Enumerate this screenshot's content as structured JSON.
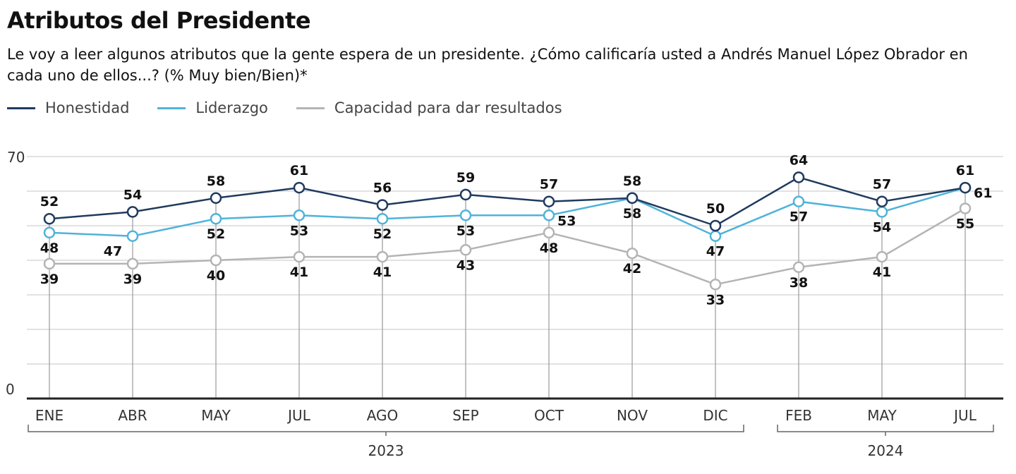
{
  "title": "Atributos del Presidente",
  "subtitle": "Le voy a leer algunos atributos que la gente espera de un presidente. ¿Cómo calificaría usted a Andrés Manuel López Obrador en cada uno de ellos...? (% Muy bien/Bien)*",
  "chart_data": {
    "type": "line",
    "categories": [
      "ENE",
      "ABR",
      "MAY",
      "JUL",
      "AGO",
      "SEP",
      "OCT",
      "NOV",
      "DIC",
      "FEB",
      "MAY",
      "JUL"
    ],
    "year_groups": [
      {
        "label": "2023",
        "from": 0,
        "to": 8
      },
      {
        "label": "2024",
        "from": 9,
        "to": 11
      }
    ],
    "ylim": [
      0,
      70
    ],
    "y_tick_labels": [
      "0",
      "70"
    ],
    "grid": true,
    "legend_position": "top-left",
    "series": [
      {
        "name": "Honestidad",
        "color": "#1f3a5f",
        "values": [
          52,
          54,
          58,
          61,
          56,
          59,
          57,
          58,
          50,
          64,
          57,
          61
        ],
        "label_pos": [
          "above",
          "above",
          "above",
          "above",
          "above",
          "above",
          "above",
          "above",
          "above",
          "above",
          "above",
          "above"
        ]
      },
      {
        "name": "Liderazgo",
        "color": "#4fb3d9",
        "values": [
          48,
          47,
          52,
          53,
          52,
          53,
          53,
          58,
          47,
          57,
          54,
          61
        ],
        "label_pos": [
          "below",
          "left",
          "below",
          "below",
          "below",
          "below",
          "right",
          "below",
          "below",
          "below",
          "below",
          "right"
        ]
      },
      {
        "name": "Capacidad para dar resultados",
        "color": "#b4b4b4",
        "values": [
          39,
          39,
          40,
          41,
          41,
          43,
          48,
          42,
          33,
          38,
          41,
          55
        ],
        "label_pos": [
          "below",
          "below",
          "below",
          "below",
          "below",
          "below",
          "below",
          "below",
          "below",
          "below",
          "below",
          "below"
        ]
      }
    ]
  }
}
